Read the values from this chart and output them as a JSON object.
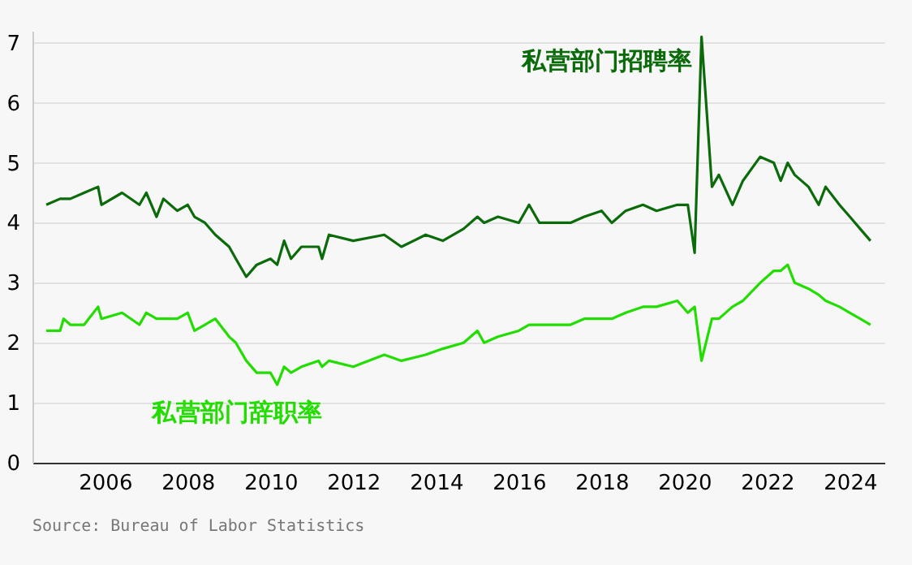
{
  "chart_data": {
    "type": "line",
    "x": [
      "2004-08",
      "2004-12",
      "2005-01",
      "2005-03",
      "2005-07",
      "2005-11",
      "2005-12",
      "2006-06",
      "2006-11",
      "2007-01",
      "2007-04",
      "2007-06",
      "2007-10",
      "2008-01",
      "2008-03",
      "2008-06",
      "2008-09",
      "2009-01",
      "2009-03",
      "2009-06",
      "2009-09",
      "2010-01",
      "2010-03",
      "2010-05",
      "2010-07",
      "2010-10",
      "2011-03",
      "2011-04",
      "2011-06",
      "2012-01",
      "2012-10",
      "2013-03",
      "2013-10",
      "2014-03",
      "2014-09",
      "2015-01",
      "2015-03",
      "2015-07",
      "2016-01",
      "2016-04",
      "2016-07",
      "2017-04",
      "2017-08",
      "2018-01",
      "2018-04",
      "2018-08",
      "2019-01",
      "2019-05",
      "2019-11",
      "2020-02",
      "2020-04",
      "2020-06",
      "2020-09",
      "2020-11",
      "2021-03",
      "2021-06",
      "2021-11",
      "2022-03",
      "2022-05",
      "2022-07",
      "2022-09",
      "2023-01",
      "2023-04",
      "2023-06",
      "2023-10",
      "2024-01",
      "2024-04",
      "2024-07"
    ],
    "series": [
      {
        "name": "私营部门招聘率",
        "color": "#0b6b0b",
        "values": [
          4.3,
          4.4,
          4.4,
          4.4,
          4.5,
          4.6,
          4.3,
          4.5,
          4.3,
          4.5,
          4.1,
          4.4,
          4.2,
          4.3,
          4.1,
          4.0,
          3.8,
          3.6,
          3.4,
          3.1,
          3.3,
          3.4,
          3.3,
          3.7,
          3.4,
          3.6,
          3.6,
          3.4,
          3.8,
          3.7,
          3.8,
          3.6,
          3.8,
          3.7,
          3.9,
          4.1,
          4.0,
          4.1,
          4.0,
          4.3,
          4.0,
          4.0,
          4.1,
          4.2,
          4.0,
          4.2,
          4.3,
          4.2,
          4.3,
          4.3,
          3.5,
          7.1,
          4.6,
          4.8,
          4.3,
          4.7,
          5.1,
          5.0,
          4.7,
          5.0,
          4.8,
          4.6,
          4.3,
          4.6,
          4.3,
          4.1,
          3.9,
          3.7
        ]
      },
      {
        "name": "私营部门辞职率",
        "color": "#22dd00",
        "values": [
          2.2,
          2.2,
          2.4,
          2.3,
          2.3,
          2.6,
          2.4,
          2.5,
          2.3,
          2.5,
          2.4,
          2.4,
          2.4,
          2.5,
          2.2,
          2.3,
          2.4,
          2.1,
          2.0,
          1.7,
          1.5,
          1.5,
          1.3,
          1.6,
          1.5,
          1.6,
          1.7,
          1.6,
          1.7,
          1.6,
          1.8,
          1.7,
          1.8,
          1.9,
          2.0,
          2.2,
          2.0,
          2.1,
          2.2,
          2.3,
          2.3,
          2.3,
          2.4,
          2.4,
          2.4,
          2.5,
          2.6,
          2.6,
          2.7,
          2.5,
          2.6,
          1.7,
          2.4,
          2.4,
          2.6,
          2.7,
          3.0,
          3.2,
          3.2,
          3.3,
          3.0,
          2.9,
          2.8,
          2.7,
          2.6,
          2.5,
          2.4,
          2.3
        ]
      }
    ],
    "xlim": [
      "2004-04",
      "2024-11"
    ],
    "xticks": [
      "2006",
      "2008",
      "2010",
      "2012",
      "2014",
      "2016",
      "2018",
      "2020",
      "2022",
      "2024"
    ],
    "ylim": [
      0,
      7.2
    ],
    "yticks": [
      0,
      1,
      2,
      3,
      4,
      5,
      6,
      7
    ],
    "grid": "y",
    "marker": "none",
    "line_style": "solid",
    "annotations": [
      "Source: Bureau of Labor Statistics"
    ]
  }
}
